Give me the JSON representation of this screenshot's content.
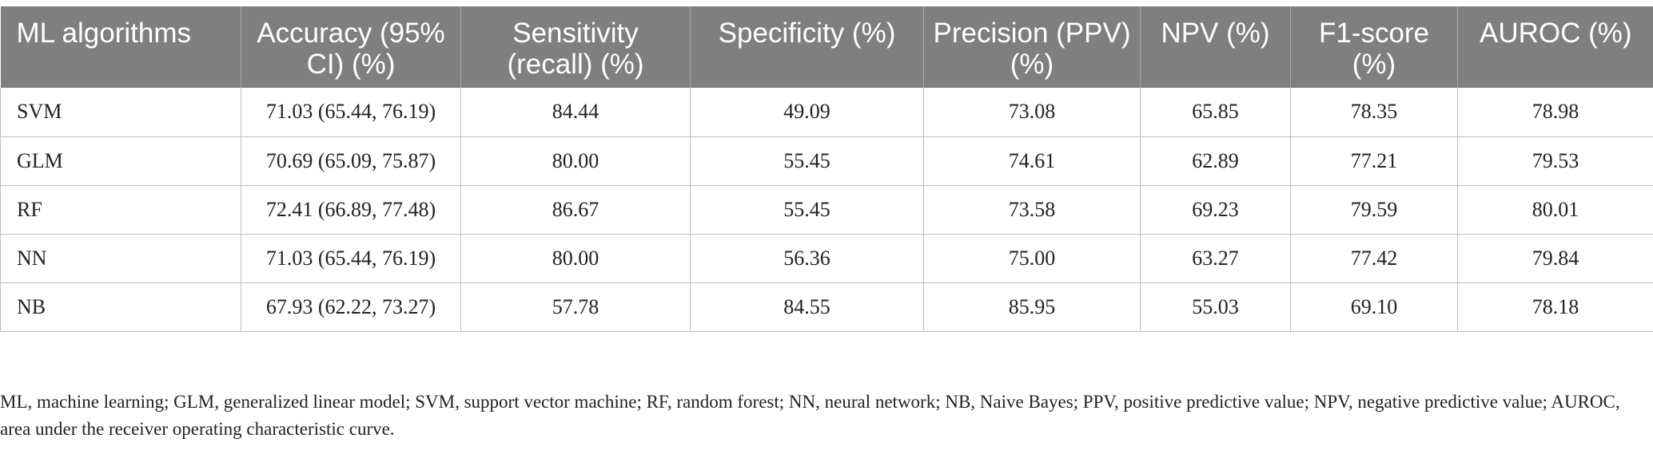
{
  "table": {
    "headers": [
      "ML algorithms",
      "Accuracy (95% CI) (%)",
      "Sensitivity (recall) (%)",
      "Specificity (%)",
      "Precision (PPV) (%)",
      "NPV (%)",
      "F1-score (%)",
      "AUROC (%)"
    ],
    "rows": [
      [
        "SVM",
        "71.03 (65.44, 76.19)",
        "84.44",
        "49.09",
        "73.08",
        "65.85",
        "78.35",
        "78.98"
      ],
      [
        "GLM",
        "70.69 (65.09, 75.87)",
        "80.00",
        "55.45",
        "74.61",
        "62.89",
        "77.21",
        "79.53"
      ],
      [
        "RF",
        "72.41 (66.89, 77.48)",
        "86.67",
        "55.45",
        "73.58",
        "69.23",
        "79.59",
        "80.01"
      ],
      [
        "NN",
        "71.03 (65.44, 76.19)",
        "80.00",
        "56.36",
        "75.00",
        "63.27",
        "77.42",
        "79.84"
      ],
      [
        "NB",
        "67.93 (62.22, 73.27)",
        "57.78",
        "84.55",
        "85.95",
        "55.03",
        "69.10",
        "78.18"
      ]
    ]
  },
  "footnote": "ML, machine learning; GLM, generalized linear model; SVM, support vector machine; RF, random forest; NN, neural network; NB, Naive Bayes; PPV, positive predictive value; NPV, negative predictive value; AUROC, area under the receiver operating characteristic curve.",
  "colors": {
    "header_bg": "#7f7f7f",
    "header_text": "#ffffff",
    "grid": "#bdbdbd"
  }
}
